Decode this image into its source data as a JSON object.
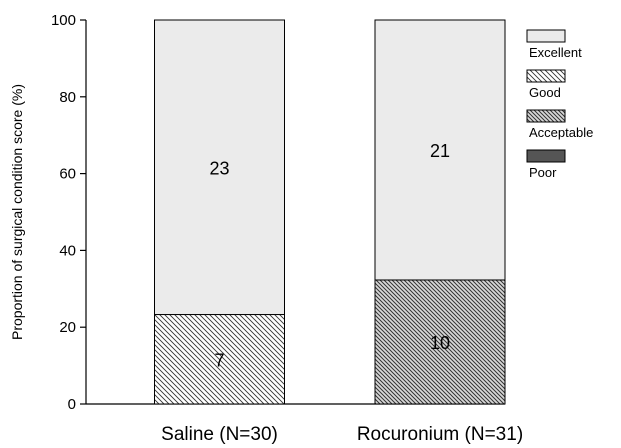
{
  "chart_data": {
    "type": "bar",
    "stacked": true,
    "categories": [
      "Saline (N=30)",
      "Rocuronium (N=31)"
    ],
    "series": [
      {
        "name": "Poor",
        "values": [
          0,
          0
        ],
        "counts": [
          "",
          ""
        ],
        "color": "#555555",
        "pattern": "solid"
      },
      {
        "name": "Acceptable",
        "values": [
          0,
          32.3
        ],
        "counts": [
          "",
          "10"
        ],
        "color": "#d8d8d8",
        "pattern": "dense-hatch"
      },
      {
        "name": "Good",
        "values": [
          23.3,
          0
        ],
        "counts": [
          "7",
          ""
        ],
        "color": "#ffffff",
        "pattern": "hatch"
      },
      {
        "name": "Excellent",
        "values": [
          76.7,
          67.7
        ],
        "counts": [
          "23",
          "21"
        ],
        "color": "#ebebeb",
        "pattern": "solid"
      }
    ],
    "legend_order": [
      "Excellent",
      "Good",
      "Acceptable",
      "Poor"
    ],
    "ylabel": "Proportion of surgical condition score (%)",
    "xlabel": "",
    "ylim": [
      0,
      100
    ],
    "yticks": [
      0,
      20,
      40,
      60,
      80,
      100
    ],
    "grid": false,
    "legend_position": "top-right"
  }
}
